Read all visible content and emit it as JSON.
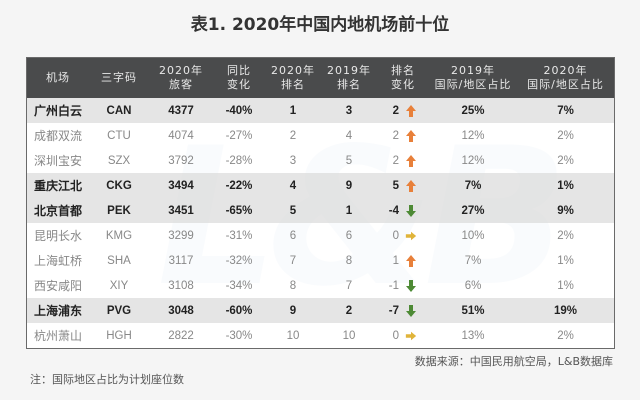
{
  "title": "表1. 2020年中国内地机场前十位",
  "colors": {
    "header_bg": "#4a4b4c",
    "highlight_row_bg": "#e1e1e1",
    "arrow_up": "#e8803a",
    "arrow_down": "#4d8a35",
    "arrow_flat": "#e0b43a"
  },
  "table": {
    "headers": [
      {
        "line1": "机场",
        "line2": ""
      },
      {
        "line1": "三字码",
        "line2": ""
      },
      {
        "line1": "2020年",
        "line2": "旅客"
      },
      {
        "line1": "同比",
        "line2": "变化"
      },
      {
        "line1": "2020年",
        "line2": "排名"
      },
      {
        "line1": "2019年",
        "line2": "排名"
      },
      {
        "line1": "排名",
        "line2": "变化"
      },
      {
        "line1": "2019年",
        "line2": "国际/地区占比"
      },
      {
        "line1": "2020年",
        "line2": "国际/地区占比"
      }
    ],
    "rows": [
      {
        "airport": "广州白云",
        "code": "CAN",
        "passengers": "4377",
        "yoy": "-40%",
        "rank2020": "1",
        "rank2019": "3",
        "rank_change": "2",
        "trend": "up",
        "intl2019": "25%",
        "intl2020": "7%",
        "highlight": true
      },
      {
        "airport": "成都双流",
        "code": "CTU",
        "passengers": "4074",
        "yoy": "-27%",
        "rank2020": "2",
        "rank2019": "4",
        "rank_change": "2",
        "trend": "up",
        "intl2019": "12%",
        "intl2020": "2%",
        "highlight": false
      },
      {
        "airport": "深圳宝安",
        "code": "SZX",
        "passengers": "3792",
        "yoy": "-28%",
        "rank2020": "3",
        "rank2019": "5",
        "rank_change": "2",
        "trend": "up",
        "intl2019": "12%",
        "intl2020": "2%",
        "highlight": false
      },
      {
        "airport": "重庆江北",
        "code": "CKG",
        "passengers": "3494",
        "yoy": "-22%",
        "rank2020": "4",
        "rank2019": "9",
        "rank_change": "5",
        "trend": "up",
        "intl2019": "7%",
        "intl2020": "1%",
        "highlight": true
      },
      {
        "airport": "北京首都",
        "code": "PEK",
        "passengers": "3451",
        "yoy": "-65%",
        "rank2020": "5",
        "rank2019": "1",
        "rank_change": "-4",
        "trend": "down",
        "intl2019": "27%",
        "intl2020": "9%",
        "highlight": true
      },
      {
        "airport": "昆明长水",
        "code": "KMG",
        "passengers": "3299",
        "yoy": "-31%",
        "rank2020": "6",
        "rank2019": "6",
        "rank_change": "0",
        "trend": "flat",
        "intl2019": "10%",
        "intl2020": "2%",
        "highlight": false
      },
      {
        "airport": "上海虹桥",
        "code": "SHA",
        "passengers": "3117",
        "yoy": "-32%",
        "rank2020": "7",
        "rank2019": "8",
        "rank_change": "1",
        "trend": "up",
        "intl2019": "7%",
        "intl2020": "1%",
        "highlight": false
      },
      {
        "airport": "西安咸阳",
        "code": "XIY",
        "passengers": "3108",
        "yoy": "-34%",
        "rank2020": "8",
        "rank2019": "7",
        "rank_change": "-1",
        "trend": "down",
        "intl2019": "6%",
        "intl2020": "1%",
        "highlight": false
      },
      {
        "airport": "上海浦东",
        "code": "PVG",
        "passengers": "3048",
        "yoy": "-60%",
        "rank2020": "9",
        "rank2019": "2",
        "rank_change": "-7",
        "trend": "down",
        "intl2019": "51%",
        "intl2020": "19%",
        "highlight": true
      },
      {
        "airport": "杭州萧山",
        "code": "HGH",
        "passengers": "2822",
        "yoy": "-30%",
        "rank2020": "10",
        "rank2019": "10",
        "rank_change": "0",
        "trend": "flat",
        "intl2019": "13%",
        "intl2020": "2%",
        "highlight": false
      }
    ]
  },
  "watermark": "L&B",
  "source": "数据来源：中国民用航空局，L&B数据库",
  "note": "注：国际地区占比为计划座位数"
}
